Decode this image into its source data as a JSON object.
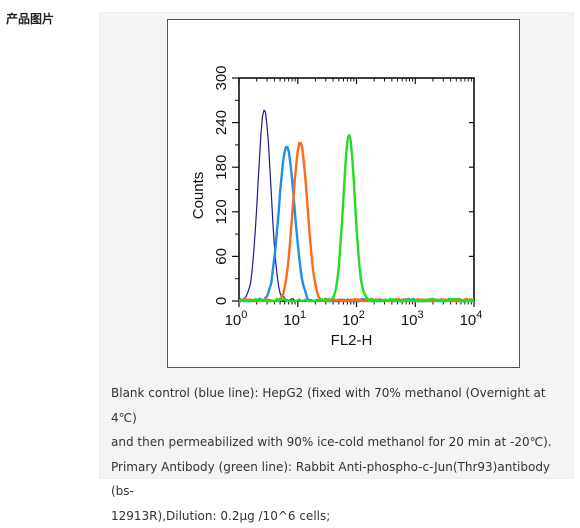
{
  "section": {
    "label": "产品图片"
  },
  "chart_data": {
    "type": "line",
    "title": "",
    "xlabel": "FL2-H",
    "ylabel": "Counts",
    "xscale": "log",
    "xlim": [
      1,
      10000
    ],
    "ylim": [
      0,
      300
    ],
    "x_ticks": [
      {
        "value": 1,
        "base": "10",
        "exp": "0"
      },
      {
        "value": 10,
        "base": "10",
        "exp": "1"
      },
      {
        "value": 100,
        "base": "10",
        "exp": "2"
      },
      {
        "value": 1000,
        "base": "10",
        "exp": "3"
      },
      {
        "value": 10000,
        "base": "10",
        "exp": "4"
      }
    ],
    "y_ticks": [
      "0",
      "60",
      "120",
      "180",
      "240",
      "300"
    ],
    "grid": false,
    "series": [
      {
        "color": "#1a1a99",
        "peak_x": 2.7,
        "peak_y": 256,
        "width": 0.11
      },
      {
        "color": "#1e90e6",
        "peak_x": 6.5,
        "peak_y": 210,
        "width": 0.13
      },
      {
        "color": "#ff6a1a",
        "peak_x": 11,
        "peak_y": 216,
        "width": 0.12
      },
      {
        "color": "#22dd22",
        "peak_x": 75,
        "peak_y": 222,
        "width": 0.1
      }
    ]
  },
  "caption": {
    "lines": [
      "Blank control (blue line): HepG2 (fixed with 70% methanol (Overnight at 4℃)",
      "and then permeabilized with 90% ice-cold methanol for 20 min at -20℃).",
      "Primary Antibody (green line): Rabbit Anti-phospho-c-Jun(Thr93)antibody (bs-",
      "12913R),Dilution: 0.2μg /10^6 cells;"
    ]
  }
}
